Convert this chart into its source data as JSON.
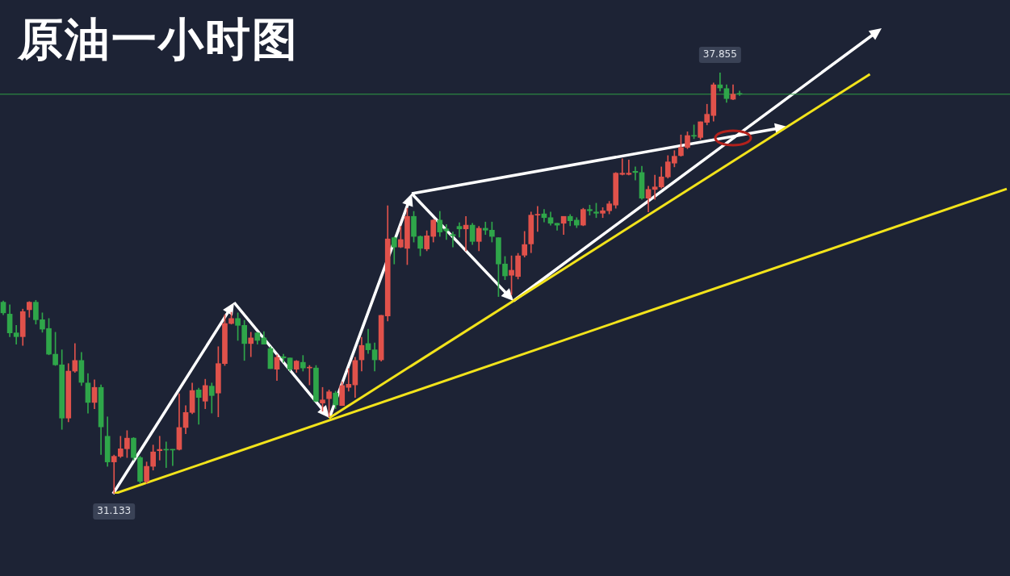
{
  "chart_data": {
    "type": "candlestick",
    "title": "原油一小时图",
    "tick_labels": false,
    "categories": [
      null,
      null,
      null,
      null,
      null,
      null,
      null,
      null,
      null,
      null,
      null,
      null,
      null,
      null,
      null,
      null,
      null,
      null,
      null,
      null,
      null,
      null,
      null,
      null,
      null,
      null,
      null,
      null,
      null,
      null,
      null,
      null,
      null,
      null,
      null,
      null,
      null,
      null,
      null,
      null,
      null,
      null,
      null,
      null,
      null,
      null,
      null,
      null,
      null,
      null,
      null,
      null,
      null,
      null,
      null,
      null,
      null,
      null,
      null,
      null,
      null,
      null,
      null,
      null,
      null,
      null,
      null,
      null,
      null,
      null,
      null,
      null,
      null,
      null,
      null,
      null,
      null,
      null,
      null,
      null,
      null,
      null,
      null,
      null,
      null,
      null,
      null,
      null,
      null,
      null,
      null,
      null,
      null,
      null,
      null,
      null,
      null,
      null,
      null,
      null,
      null,
      null,
      null,
      null,
      null,
      null,
      null,
      null,
      null,
      null,
      null,
      null,
      null,
      null,
      null,
      null,
      null,
      null,
      null,
      null,
      null,
      null,
      null,
      null,
      null,
      null,
      null,
      null,
      null,
      null,
      null,
      null,
      null,
      null,
      null,
      null,
      null,
      null,
      null,
      null,
      null,
      null,
      null,
      null,
      null,
      null,
      null,
      null,
      null,
      null,
      null,
      null,
      null,
      null,
      null
    ],
    "ohlc": [
      [
        34.19,
        34.21,
        33.99,
        34.02
      ],
      [
        34.0,
        34.15,
        33.64,
        33.7
      ],
      [
        33.7,
        33.82,
        33.52,
        33.64
      ],
      [
        33.64,
        34.08,
        33.5,
        34.04
      ],
      [
        34.07,
        34.2,
        33.95,
        34.19
      ],
      [
        34.19,
        34.22,
        33.84,
        33.91
      ],
      [
        33.91,
        34.02,
        33.71,
        33.76
      ],
      [
        33.77,
        33.93,
        33.35,
        33.36
      ],
      [
        33.36,
        33.71,
        33.18,
        33.19
      ],
      [
        33.19,
        33.43,
        32.16,
        32.34
      ],
      [
        32.34,
        33.21,
        32.28,
        33.09
      ],
      [
        33.09,
        33.53,
        33.07,
        33.26
      ],
      [
        33.26,
        33.39,
        32.86,
        32.91
      ],
      [
        32.9,
        33.05,
        32.42,
        32.59
      ],
      [
        32.59,
        32.95,
        32.49,
        32.83
      ],
      [
        32.83,
        32.87,
        31.76,
        32.2
      ],
      [
        32.05,
        32.36,
        31.57,
        31.64
      ],
      [
        31.64,
        31.75,
        31.133,
        31.73
      ],
      [
        31.73,
        32.05,
        31.71,
        31.85
      ],
      [
        31.85,
        32.14,
        31.71,
        32.02
      ],
      [
        32.02,
        32.03,
        31.67,
        31.71
      ],
      [
        31.71,
        31.73,
        31.3,
        31.33
      ],
      [
        31.33,
        31.64,
        31.3,
        31.57
      ],
      [
        31.57,
        31.91,
        31.51,
        31.8
      ],
      [
        31.82,
        32.05,
        31.67,
        31.84
      ],
      [
        31.84,
        31.96,
        31.55,
        31.83
      ],
      [
        31.84,
        31.84,
        31.58,
        31.83
      ],
      [
        31.84,
        32.73,
        31.83,
        32.19
      ],
      [
        32.19,
        32.54,
        32.09,
        32.43
      ],
      [
        32.43,
        32.9,
        32.41,
        32.78
      ],
      [
        32.79,
        32.82,
        32.24,
        32.67
      ],
      [
        32.61,
        32.96,
        32.49,
        32.86
      ],
      [
        32.85,
        32.9,
        32.42,
        32.7
      ],
      [
        32.74,
        33.48,
        32.36,
        33.21
      ],
      [
        33.21,
        33.99,
        33.18,
        33.85
      ],
      [
        33.85,
        34.03,
        33.84,
        33.93
      ],
      [
        33.93,
        34.02,
        33.58,
        33.82
      ],
      [
        33.82,
        33.9,
        33.26,
        33.53
      ],
      [
        33.53,
        33.71,
        33.32,
        33.62
      ],
      [
        33.7,
        33.71,
        33.52,
        33.58
      ],
      [
        33.62,
        33.72,
        33.52,
        33.52
      ],
      [
        33.45,
        33.48,
        33.13,
        33.13
      ],
      [
        33.12,
        33.35,
        32.94,
        33.31
      ],
      [
        33.32,
        33.36,
        33.23,
        33.3
      ],
      [
        33.3,
        33.3,
        33.09,
        33.12
      ],
      [
        33.12,
        33.26,
        33.07,
        33.25
      ],
      [
        33.23,
        33.34,
        33.09,
        33.14
      ],
      [
        33.14,
        33.18,
        32.87,
        33.15
      ],
      [
        33.14,
        33.18,
        32.6,
        32.61
      ],
      [
        32.58,
        32.83,
        32.45,
        32.63
      ],
      [
        32.65,
        32.79,
        32.36,
        32.76
      ],
      [
        32.74,
        32.77,
        32.49,
        32.55
      ],
      [
        32.54,
        32.92,
        32.54,
        32.86
      ],
      [
        32.83,
        33.13,
        32.77,
        32.88
      ],
      [
        32.87,
        33.31,
        32.67,
        33.26
      ],
      [
        33.27,
        33.63,
        33.09,
        33.5
      ],
      [
        33.53,
        33.76,
        33.37,
        33.43
      ],
      [
        33.43,
        33.54,
        33.09,
        33.27
      ],
      [
        33.27,
        33.98,
        33.25,
        33.98
      ],
      [
        33.97,
        35.73,
        33.89,
        35.2
      ],
      [
        35.22,
        35.23,
        34.8,
        35.07
      ],
      [
        35.07,
        35.4,
        35.06,
        35.19
      ],
      [
        35.05,
        35.69,
        34.79,
        35.56
      ],
      [
        35.56,
        35.64,
        35.15,
        35.24
      ],
      [
        35.24,
        35.25,
        34.93,
        35.05
      ],
      [
        35.04,
        35.33,
        35.01,
        35.25
      ],
      [
        35.24,
        35.51,
        35.15,
        35.5
      ],
      [
        35.5,
        35.64,
        35.24,
        35.31
      ],
      [
        35.36,
        35.43,
        35.19,
        35.33
      ],
      [
        35.27,
        35.31,
        35.07,
        35.25
      ],
      [
        35.4,
        35.46,
        35.23,
        35.36
      ],
      [
        35.36,
        35.56,
        35.01,
        35.42
      ],
      [
        35.42,
        35.45,
        35.11,
        35.16
      ],
      [
        35.16,
        35.4,
        35.01,
        35.37
      ],
      [
        35.37,
        35.47,
        35.27,
        35.34
      ],
      [
        35.34,
        35.47,
        35.15,
        35.24
      ],
      [
        35.22,
        35.22,
        34.28,
        34.8
      ],
      [
        34.8,
        34.92,
        34.55,
        34.61
      ],
      [
        34.62,
        34.93,
        34.31,
        34.7
      ],
      [
        34.6,
        34.97,
        34.56,
        34.93
      ],
      [
        34.94,
        35.32,
        34.91,
        35.11
      ],
      [
        35.12,
        35.63,
        34.98,
        35.58
      ],
      [
        35.58,
        35.72,
        35.32,
        35.59
      ],
      [
        35.6,
        35.67,
        35.47,
        35.54
      ],
      [
        35.54,
        35.63,
        35.42,
        35.45
      ],
      [
        35.45,
        35.45,
        35.34,
        35.42
      ],
      [
        35.45,
        35.56,
        35.27,
        35.56
      ],
      [
        35.56,
        35.59,
        35.41,
        35.49
      ],
      [
        35.5,
        35.54,
        35.38,
        35.42
      ],
      [
        35.42,
        35.69,
        35.41,
        35.67
      ],
      [
        35.67,
        35.74,
        35.58,
        35.65
      ],
      [
        35.63,
        35.77,
        35.54,
        35.61
      ],
      [
        35.61,
        35.7,
        35.54,
        35.65
      ],
      [
        35.65,
        35.8,
        35.6,
        35.76
      ],
      [
        35.74,
        36.26,
        35.69,
        36.25
      ],
      [
        36.23,
        36.48,
        36.22,
        36.25
      ],
      [
        36.23,
        36.46,
        36.22,
        36.25
      ],
      [
        36.28,
        36.35,
        36.14,
        36.26
      ],
      [
        36.26,
        36.36,
        35.83,
        35.85
      ],
      [
        35.85,
        36.04,
        35.63,
        35.99
      ],
      [
        35.99,
        36.22,
        35.83,
        36.03
      ],
      [
        36.03,
        36.35,
        36.01,
        36.19
      ],
      [
        36.19,
        36.53,
        36.17,
        36.43
      ],
      [
        36.41,
        36.61,
        36.35,
        36.52
      ],
      [
        36.53,
        36.86,
        36.52,
        36.66
      ],
      [
        36.66,
        36.91,
        36.64,
        36.85
      ],
      [
        36.85,
        37.02,
        36.8,
        36.84
      ],
      [
        36.82,
        37.07,
        36.79,
        37.07
      ],
      [
        37.06,
        37.35,
        37.02,
        37.19
      ],
      [
        37.17,
        37.69,
        37.08,
        37.66
      ],
      [
        37.66,
        37.855,
        37.56,
        37.61
      ],
      [
        37.6,
        37.66,
        37.38,
        37.44
      ],
      [
        37.43,
        37.66,
        37.42,
        37.51
      ],
      [
        37.52,
        37.56,
        37.49,
        37.51
      ],
      null,
      null,
      null,
      null,
      null,
      null,
      null,
      null,
      null,
      null,
      null,
      null,
      null,
      null,
      null,
      null,
      null,
      null,
      null,
      null,
      null,
      null,
      null,
      null,
      null,
      null,
      null,
      null,
      null,
      null,
      null,
      null,
      null,
      null,
      null,
      null,
      null,
      null,
      null,
      null,
      null
    ],
    "colors": [
      "#2fa64a",
      "#2fa64a",
      "#2fa64a",
      "#e0524b",
      "#e0524b",
      "#2fa64a",
      "#2fa64a",
      "#2fa64a",
      "#2fa64a",
      "#2fa64a",
      "#e0524b",
      "#e0524b",
      "#2fa64a",
      "#2fa64a",
      "#e0524b",
      "#2fa64a",
      "#2fa64a",
      "#e0524b",
      "#e0524b",
      "#e0524b",
      "#2fa64a",
      "#2fa64a",
      "#e0524b",
      "#e0524b",
      "#e0524b",
      "#2fa64a",
      "#2fa64a",
      "#e0524b",
      "#e0524b",
      "#e0524b",
      "#2fa64a",
      "#e0524b",
      "#2fa64a",
      "#e0524b",
      "#e0524b",
      "#e0524b",
      "#2fa64a",
      "#2fa64a",
      "#e0524b",
      "#2fa64a",
      "#2fa64a",
      "#2fa64a",
      "#e0524b",
      "#2fa64a",
      "#2fa64a",
      "#e0524b",
      "#2fa64a",
      "#e0524b",
      "#2fa64a",
      "#e0524b",
      "#e0524b",
      "#2fa64a",
      "#e0524b",
      "#e0524b",
      "#e0524b",
      "#e0524b",
      "#2fa64a",
      "#2fa64a",
      "#e0524b",
      "#e0524b",
      "#2fa64a",
      "#e0524b",
      "#e0524b",
      "#2fa64a",
      "#2fa64a",
      "#e0524b",
      "#e0524b",
      "#2fa64a",
      "#2fa64a",
      "#2fa64a",
      "#2fa64a",
      "#e0524b",
      "#2fa64a",
      "#e0524b",
      "#2fa64a",
      "#2fa64a",
      "#2fa64a",
      "#2fa64a",
      "#e0524b",
      "#e0524b",
      "#e0524b",
      "#e0524b",
      "#e0524b",
      "#2fa64a",
      "#2fa64a",
      "#2fa64a",
      "#e0524b",
      "#2fa64a",
      "#2fa64a",
      "#e0524b",
      "#2fa64a",
      "#2fa64a",
      "#e0524b",
      "#e0524b",
      "#e0524b",
      "#e0524b",
      "#e0524b",
      "#2fa64a",
      "#2fa64a",
      "#e0524b",
      "#e0524b",
      "#e0524b",
      "#e0524b",
      "#e0524b",
      "#e0524b",
      "#e0524b",
      "#2fa64a",
      "#e0524b",
      "#e0524b",
      "#e0524b",
      "#2fa64a",
      "#2fa64a",
      "#e0524b",
      "#2fa64a",
      null,
      null,
      null,
      null,
      null,
      null,
      null,
      null,
      null,
      null,
      null,
      null,
      null,
      null,
      null,
      null,
      null,
      null,
      null,
      null,
      null,
      null,
      null,
      null,
      null,
      null,
      null,
      null,
      null,
      null,
      null,
      null,
      null,
      null,
      null,
      null,
      null,
      null,
      null,
      null,
      null
    ],
    "series": [
      {
        "type": "line",
        "color": "#f2e31b",
        "values": [
          null,
          null,
          null,
          null,
          null,
          null,
          null,
          null,
          null,
          null,
          null,
          null,
          null,
          null,
          null,
          null,
          null,
          31.13,
          null,
          null,
          null,
          null,
          null,
          null,
          null,
          null,
          null,
          null,
          null,
          null,
          null,
          null,
          null,
          null,
          null,
          null,
          null,
          null,
          null,
          null,
          null,
          null,
          null,
          null,
          null,
          null,
          null,
          null,
          null,
          null,
          null,
          null,
          null,
          null,
          null,
          null,
          null,
          null,
          null,
          null,
          null,
          null,
          null,
          null,
          null,
          null,
          null,
          null,
          null,
          null,
          null,
          null,
          null,
          null,
          null,
          null,
          null,
          null,
          null,
          null,
          null,
          null,
          null,
          null,
          null,
          null,
          null,
          null,
          null,
          null,
          null,
          null,
          null,
          null,
          null,
          null,
          null,
          null,
          null,
          null,
          null,
          null,
          null,
          null,
          null,
          null,
          null,
          null,
          null,
          null,
          null,
          null,
          null,
          null,
          null,
          null,
          null,
          null,
          null,
          null,
          null,
          null,
          null,
          null,
          null,
          null,
          null,
          null,
          null,
          null,
          null,
          null,
          null,
          null,
          null,
          null,
          null,
          null,
          null,
          null,
          null,
          null,
          null,
          null,
          null,
          null,
          null,
          null,
          null,
          null,
          null,
          null,
          null,
          null,
          36.0
        ]
      },
      {
        "type": "line",
        "color": "#f2e31b",
        "values": [
          null,
          null,
          null,
          null,
          null,
          null,
          null,
          null,
          null,
          null,
          null,
          null,
          null,
          null,
          null,
          null,
          null,
          null,
          null,
          null,
          null,
          null,
          null,
          null,
          null,
          null,
          null,
          null,
          null,
          null,
          null,
          null,
          null,
          null,
          null,
          null,
          null,
          null,
          null,
          null,
          null,
          null,
          null,
          null,
          null,
          null,
          null,
          null,
          null,
          null,
          32.34,
          null,
          null,
          null,
          null,
          null,
          null,
          null,
          null,
          null,
          null,
          null,
          null,
          null,
          null,
          null,
          null,
          null,
          null,
          null,
          null,
          null,
          null,
          null,
          null,
          null,
          null,
          null,
          null,
          null,
          null,
          null,
          null,
          null,
          null,
          null,
          null,
          null,
          null,
          null,
          null,
          null,
          null,
          null,
          null,
          null,
          null,
          null,
          null,
          null,
          null,
          null,
          null,
          null,
          null,
          null,
          null,
          null,
          null,
          null,
          null,
          null,
          null,
          null,
          null,
          null,
          null,
          null,
          null,
          null,
          null,
          null,
          null,
          null,
          null,
          null,
          null,
          null,
          null,
          null,
          null,
          null,
          null,
          37.83,
          null,
          null,
          null,
          null,
          null,
          null,
          null,
          null,
          null,
          null,
          null,
          null,
          null,
          null,
          null,
          null,
          null,
          null,
          null,
          null,
          null
        ]
      }
    ],
    "ref_lines": [
      {
        "axis": "y",
        "value": 37.51,
        "color": "#2f9e44"
      }
    ],
    "annotations": [
      {
        "text": "37.855",
        "y": 37.855
      },
      {
        "text": "31.133",
        "y": 31.133
      }
    ]
  }
}
